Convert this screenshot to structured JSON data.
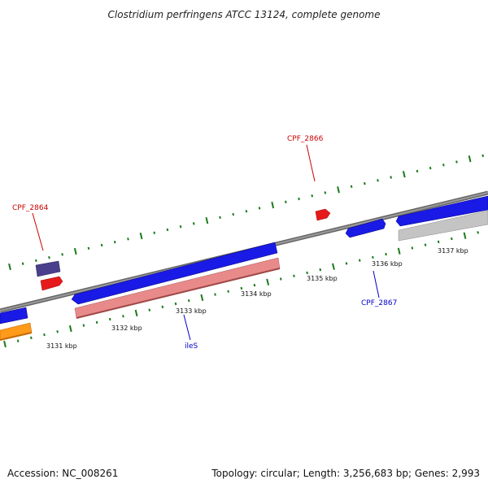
{
  "title": "Clostridium perfringens ATCC 13124, complete genome",
  "footer": {
    "accession": "Accession: NC_008261",
    "summary": "Topology: circular; Length: 3,256,683 bp; Genes: 2,993"
  },
  "kbp_labels": [
    "3131 kbp",
    "3132 kbp",
    "3133 kbp",
    "3134 kbp",
    "3135 kbp",
    "3136 kbp",
    "3137 kbp"
  ],
  "gene_labels": {
    "cpf2864": "CPF_2864",
    "cpf2866": "CPF_2866",
    "cpf2867": "CPF_2867",
    "iles": "ileS"
  },
  "colors": {
    "backbone": "#888888",
    "forward_cds": "#1a1ae6",
    "reverse_cds": "#e61a1a",
    "rna": "#4a3f8c",
    "pink_feature": "#e88a8a",
    "orange_feature": "#ff9a1a",
    "gray_feature": "#c4c4c4",
    "tick": "#1a7a1a",
    "label_red": "#cc0000",
    "label_blue": "#0000cc"
  }
}
